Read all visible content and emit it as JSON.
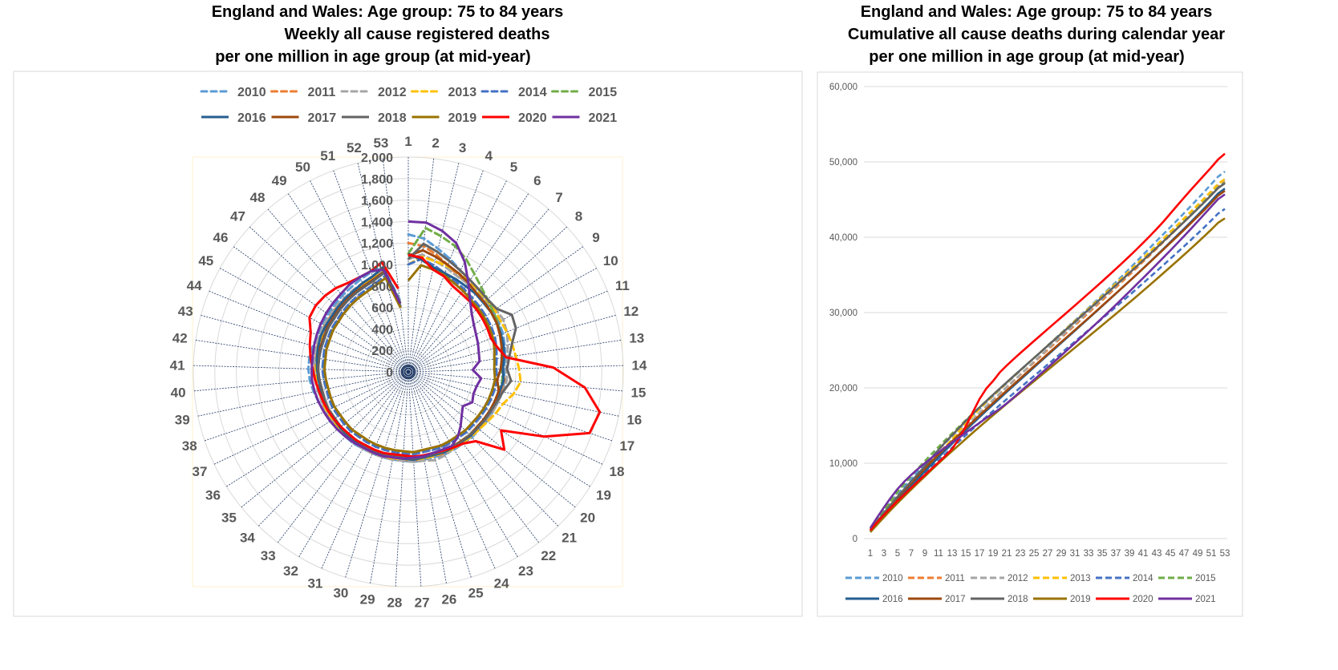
{
  "chart_data": [
    {
      "type": "radar",
      "title": [
        "England and Wales: Age group:   75 to 84 years",
        "Weekly all cause registered deaths",
        "per one million in age group (at mid-year)"
      ],
      "categories": [
        "1",
        "2",
        "3",
        "4",
        "5",
        "6",
        "7",
        "8",
        "9",
        "10",
        "11",
        "12",
        "13",
        "14",
        "15",
        "16",
        "17",
        "18",
        "19",
        "20",
        "21",
        "22",
        "23",
        "24",
        "25",
        "26",
        "27",
        "28",
        "29",
        "30",
        "31",
        "32",
        "33",
        "34",
        "35",
        "36",
        "37",
        "38",
        "39",
        "40",
        "41",
        "42",
        "43",
        "44",
        "45",
        "46",
        "47",
        "48",
        "49",
        "50",
        "51",
        "52",
        "53"
      ],
      "radial_ticks": [
        "0",
        "200",
        "400",
        "600",
        "800",
        "1,000",
        "1,200",
        "1,400",
        "1,600",
        "1,800",
        "2,000"
      ],
      "rlim": [
        0,
        2000
      ],
      "legend": "top",
      "series": [
        {
          "name": "2010",
          "color": "#5B9BD5",
          "dashed": true,
          "values": [
            1280,
            1250,
            1180,
            1120,
            1060,
            1030,
            1000,
            980,
            970,
            960,
            950,
            930,
            910,
            890,
            900,
            890,
            880,
            870,
            860,
            850,
            850,
            840,
            840,
            840,
            830,
            830,
            840,
            830,
            830,
            830,
            830,
            830,
            840,
            840,
            850,
            860,
            870,
            880,
            900,
            920,
            930,
            930,
            920,
            910,
            910,
            920,
            930,
            940,
            950,
            970,
            990,
            1000,
            680
          ]
        },
        {
          "name": "2011",
          "color": "#ED7D31",
          "dashed": true,
          "values": [
            1200,
            1180,
            1120,
            1060,
            1010,
            990,
            970,
            960,
            950,
            940,
            930,
            910,
            890,
            870,
            900,
            890,
            880,
            870,
            860,
            850,
            840,
            830,
            830,
            830,
            820,
            820,
            830,
            820,
            820,
            820,
            820,
            820,
            830,
            830,
            830,
            840,
            850,
            850,
            850,
            860,
            870,
            870,
            880,
            880,
            890,
            890,
            900,
            900,
            910,
            920,
            940,
            980,
            660
          ]
        },
        {
          "name": "2012",
          "color": "#A5A5A5",
          "dashed": true,
          "values": [
            1050,
            1100,
            1060,
            1030,
            1000,
            990,
            980,
            980,
            1000,
            1010,
            990,
            960,
            930,
            910,
            920,
            900,
            880,
            870,
            860,
            850,
            840,
            840,
            830,
            850,
            860,
            840,
            840,
            830,
            830,
            830,
            830,
            830,
            830,
            840,
            840,
            840,
            850,
            850,
            860,
            870,
            880,
            880,
            890,
            890,
            900,
            900,
            910,
            910,
            920,
            930,
            950,
            980,
            660
          ]
        },
        {
          "name": "2013",
          "color": "#FFC000",
          "dashed": true,
          "values": [
            1000,
            1080,
            1060,
            1050,
            1030,
            1020,
            1000,
            990,
            990,
            980,
            990,
            1000,
            1010,
            1030,
            1050,
            1000,
            930,
            900,
            870,
            850,
            840,
            830,
            830,
            820,
            820,
            820,
            820,
            810,
            820,
            820,
            820,
            820,
            820,
            830,
            830,
            830,
            840,
            840,
            840,
            850,
            860,
            860,
            870,
            870,
            880,
            880,
            890,
            890,
            900,
            910,
            930,
            960,
            650
          ]
        },
        {
          "name": "2014",
          "color": "#4472C4",
          "dashed": true,
          "values": [
            1000,
            1060,
            1020,
            980,
            950,
            930,
            910,
            900,
            890,
            880,
            870,
            850,
            830,
            820,
            830,
            820,
            810,
            800,
            790,
            780,
            780,
            770,
            770,
            770,
            760,
            760,
            770,
            760,
            760,
            760,
            760,
            760,
            760,
            770,
            770,
            770,
            780,
            780,
            780,
            790,
            800,
            800,
            810,
            810,
            820,
            820,
            830,
            840,
            850,
            860,
            880,
            920,
            620
          ]
        },
        {
          "name": "2015",
          "color": "#70AD47",
          "dashed": true,
          "values": [
            1100,
            1350,
            1300,
            1250,
            1180,
            1100,
            1040,
            1000,
            970,
            950,
            930,
            910,
            890,
            870,
            880,
            860,
            850,
            840,
            830,
            820,
            820,
            810,
            810,
            810,
            800,
            800,
            810,
            800,
            800,
            800,
            800,
            800,
            800,
            810,
            810,
            810,
            820,
            820,
            820,
            830,
            840,
            840,
            850,
            850,
            860,
            860,
            870,
            880,
            890,
            900,
            920,
            960,
            640
          ]
        },
        {
          "name": "2016",
          "color": "#255E91",
          "dashed": false,
          "values": [
            1100,
            1050,
            1000,
            980,
            970,
            960,
            960,
            950,
            950,
            940,
            930,
            920,
            900,
            880,
            890,
            870,
            860,
            850,
            840,
            830,
            830,
            820,
            820,
            820,
            810,
            810,
            820,
            810,
            810,
            810,
            810,
            810,
            810,
            820,
            820,
            820,
            830,
            830,
            830,
            840,
            850,
            860,
            870,
            880,
            880,
            880,
            890,
            900,
            910,
            930,
            950,
            1000,
            650
          ]
        },
        {
          "name": "2017",
          "color": "#9E480E",
          "dashed": false,
          "values": [
            1080,
            1140,
            1100,
            1060,
            1030,
            1000,
            970,
            960,
            950,
            940,
            920,
            900,
            880,
            860,
            830,
            860,
            850,
            840,
            830,
            820,
            820,
            810,
            810,
            810,
            800,
            800,
            810,
            800,
            800,
            800,
            800,
            800,
            800,
            810,
            810,
            810,
            820,
            820,
            820,
            830,
            840,
            840,
            850,
            850,
            860,
            860,
            870,
            880,
            890,
            900,
            920,
            960,
            640
          ]
        },
        {
          "name": "2018",
          "color": "#636363",
          "dashed": false,
          "values": [
            1050,
            1200,
            1150,
            1100,
            1060,
            1030,
            1010,
            1000,
            1010,
            1100,
            1080,
            1000,
            950,
            920,
            960,
            900,
            870,
            850,
            840,
            830,
            820,
            820,
            810,
            810,
            800,
            800,
            810,
            800,
            800,
            800,
            800,
            800,
            800,
            810,
            810,
            810,
            820,
            820,
            820,
            830,
            840,
            840,
            840,
            840,
            850,
            850,
            860,
            870,
            880,
            890,
            910,
            950,
            640
          ]
        },
        {
          "name": "2019",
          "color": "#997300",
          "dashed": false,
          "values": [
            850,
            1000,
            980,
            960,
            930,
            910,
            890,
            880,
            870,
            860,
            850,
            830,
            810,
            800,
            810,
            800,
            790,
            780,
            770,
            760,
            760,
            750,
            750,
            750,
            740,
            740,
            750,
            740,
            740,
            740,
            740,
            740,
            740,
            750,
            750,
            750,
            760,
            760,
            760,
            770,
            780,
            780,
            790,
            790,
            800,
            800,
            810,
            820,
            830,
            840,
            860,
            900,
            600
          ]
        },
        {
          "name": "2020",
          "color": "#FF0000",
          "dashed": false,
          "values": [
            1090,
            1070,
            980,
            950,
            900,
            880,
            870,
            860,
            850,
            840,
            830,
            860,
            920,
            1350,
            1650,
            1820,
            1780,
            1400,
            1020,
            1150,
            900,
            840,
            820,
            800,
            790,
            790,
            790,
            780,
            780,
            790,
            790,
            790,
            800,
            800,
            810,
            820,
            830,
            840,
            850,
            870,
            890,
            920,
            950,
            980,
            1050,
            1060,
            1050,
            1030,
            1000,
            990,
            1000,
            1050,
            780
          ]
        },
        {
          "name": "2021",
          "color": "#7030A0",
          "dashed": false,
          "values": [
            1400,
            1400,
            1350,
            1280,
            1150,
            1000,
            880,
            800,
            750,
            720,
            700,
            680,
            670,
            600,
            680,
            650,
            640,
            660,
            600,
            640,
            700,
            760,
            800,
            790,
            790,
            800,
            800,
            810,
            810,
            820,
            820,
            820,
            830,
            840,
            850,
            860,
            870,
            880,
            890,
            900,
            900,
            900,
            910,
            920,
            930,
            940,
            950,
            960,
            980,
            990,
            1000,
            980,
            640
          ]
        }
      ]
    },
    {
      "type": "line",
      "title": [
        "England and Wales: Age group: 75 to 84 years",
        "Cumulative all cause deaths during calendar year",
        "per one million in age group (at mid-year)"
      ],
      "derived_from": "cumulative sum of weekly series",
      "x_ticks": [
        "1",
        "3",
        "5",
        "7",
        "9",
        "11",
        "13",
        "15",
        "17",
        "19",
        "21",
        "23",
        "25",
        "27",
        "29",
        "31",
        "33",
        "35",
        "37",
        "39",
        "41",
        "43",
        "45",
        "47",
        "49",
        "51",
        "53"
      ],
      "y_ticks": [
        "0",
        "10,000",
        "20,000",
        "30,000",
        "40,000",
        "50,000",
        "60,000"
      ],
      "ylim": [
        0,
        60000
      ],
      "grid": true,
      "legend": "bottom"
    }
  ]
}
